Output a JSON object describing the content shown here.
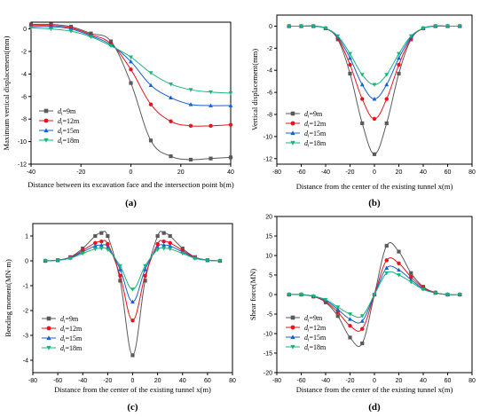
{
  "series_colors": [
    "#5a5a5a",
    "#e8131b",
    "#1560d4",
    "#18b57a"
  ],
  "chart_data": [
    {
      "type": "line",
      "caption": "(a)",
      "xlabel": "Distance between its excavation face and the intersection point b(m)",
      "ylabel": "Maximum vertical displacement(mm)",
      "xlim": [
        -40,
        40
      ],
      "ylim": [
        -12,
        0.6
      ],
      "xticks": [
        -40,
        -20,
        0,
        20,
        40
      ],
      "yticks": [
        0,
        -2,
        -4,
        -6,
        -8,
        -10,
        -12
      ],
      "legend": "left",
      "series": [
        {
          "name": "9m",
          "marker": "square",
          "x": [
            -40,
            -32,
            -24,
            -16,
            -8,
            0,
            8,
            16,
            24,
            32,
            40
          ],
          "y": [
            0.4,
            0.4,
            0.2,
            -0.4,
            -1.1,
            -4.8,
            -9.9,
            -11.3,
            -11.6,
            -11.5,
            -11.4
          ]
        },
        {
          "name": "12m",
          "marker": "circle",
          "x": [
            -40,
            -32,
            -24,
            -16,
            -8,
            0,
            8,
            16,
            24,
            32,
            40
          ],
          "y": [
            0.3,
            0.3,
            0.1,
            -0.5,
            -1.3,
            -3.6,
            -6.7,
            -8.2,
            -8.6,
            -8.6,
            -8.5
          ]
        },
        {
          "name": "15m",
          "marker": "triangle-up",
          "x": [
            -40,
            -32,
            -24,
            -16,
            -8,
            0,
            8,
            16,
            24,
            32,
            40
          ],
          "y": [
            0.2,
            0.2,
            0.0,
            -0.6,
            -1.4,
            -2.9,
            -5.0,
            -6.1,
            -6.7,
            -6.8,
            -6.8
          ]
        },
        {
          "name": "18m",
          "marker": "triangle-down",
          "x": [
            -40,
            -32,
            -24,
            -16,
            -8,
            0,
            8,
            16,
            24,
            32,
            40
          ],
          "y": [
            0.1,
            0.0,
            -0.2,
            -0.7,
            -1.5,
            -2.5,
            -3.9,
            -4.9,
            -5.4,
            -5.6,
            -5.7
          ]
        }
      ]
    },
    {
      "type": "line",
      "caption": "(b)",
      "xlabel": "Distance from the center of the existing tunnel x(m)",
      "ylabel": "Vertical displacement(mm)",
      "xlim": [
        -80,
        80
      ],
      "ylim": [
        -12.5,
        1
      ],
      "xticks": [
        -80,
        -60,
        -40,
        -20,
        0,
        20,
        40,
        60,
        80
      ],
      "yticks": [
        0,
        -2,
        -4,
        -6,
        -8,
        -10,
        -12
      ],
      "legend": "left",
      "series": [
        {
          "name": "9m",
          "marker": "square",
          "x": [
            -70,
            -60,
            -50,
            -40,
            -30,
            -20,
            -10,
            0,
            10,
            20,
            30,
            40,
            50,
            60,
            70
          ],
          "y": [
            0,
            0,
            0,
            -0.2,
            -1.2,
            -4.3,
            -8.8,
            -11.6,
            -8.8,
            -4.3,
            -1.2,
            -0.2,
            0,
            0,
            0
          ]
        },
        {
          "name": "12m",
          "marker": "circle",
          "x": [
            -70,
            -60,
            -50,
            -40,
            -30,
            -20,
            -10,
            0,
            10,
            20,
            30,
            40,
            50,
            60,
            70
          ],
          "y": [
            0,
            0,
            0,
            -0.2,
            -1.1,
            -3.5,
            -6.6,
            -8.4,
            -6.6,
            -3.5,
            -1.1,
            -0.2,
            0,
            0,
            0
          ]
        },
        {
          "name": "15m",
          "marker": "triangle-up",
          "x": [
            -70,
            -60,
            -50,
            -40,
            -30,
            -20,
            -10,
            0,
            10,
            20,
            30,
            40,
            50,
            60,
            70
          ],
          "y": [
            0,
            0,
            0,
            -0.2,
            -1.0,
            -2.9,
            -5.3,
            -6.6,
            -5.3,
            -2.9,
            -1.0,
            -0.2,
            0,
            0,
            0
          ]
        },
        {
          "name": "18m",
          "marker": "triangle-down",
          "x": [
            -70,
            -60,
            -50,
            -40,
            -30,
            -20,
            -10,
            0,
            10,
            20,
            30,
            40,
            50,
            60,
            70
          ],
          "y": [
            0,
            0,
            0,
            -0.2,
            -0.9,
            -2.5,
            -4.4,
            -5.3,
            -4.4,
            -2.5,
            -0.9,
            -0.2,
            0,
            0,
            0
          ]
        }
      ]
    },
    {
      "type": "line",
      "caption": "(c)",
      "xlabel": "Distance from the center of the existing tunnel x(m)",
      "ylabel": "Bending moment(MN·m)",
      "xlim": [
        -80,
        80
      ],
      "ylim": [
        -4.5,
        1.5
      ],
      "xticks": [
        -80,
        -60,
        -40,
        -20,
        0,
        20,
        40,
        60,
        80
      ],
      "yticks": [
        1,
        0,
        -1,
        -2,
        -3,
        -4
      ],
      "legend": "left",
      "series": [
        {
          "name": "9m",
          "marker": "square",
          "x": [
            -70,
            -60,
            -50,
            -40,
            -30,
            -25,
            -20,
            -10,
            0,
            10,
            20,
            25,
            30,
            40,
            50,
            60,
            70
          ],
          "y": [
            0,
            0.03,
            0.15,
            0.5,
            1.0,
            1.12,
            1.0,
            -0.8,
            -3.8,
            -0.8,
            1.0,
            1.12,
            1.0,
            0.5,
            0.15,
            0.03,
            0
          ]
        },
        {
          "name": "12m",
          "marker": "circle",
          "x": [
            -70,
            -60,
            -50,
            -40,
            -30,
            -25,
            -20,
            -10,
            0,
            10,
            20,
            25,
            30,
            40,
            50,
            60,
            70
          ],
          "y": [
            0,
            0.03,
            0.13,
            0.42,
            0.72,
            0.78,
            0.68,
            -0.6,
            -2.4,
            -0.6,
            0.68,
            0.78,
            0.72,
            0.42,
            0.13,
            0.03,
            0
          ]
        },
        {
          "name": "15m",
          "marker": "triangle-up",
          "x": [
            -70,
            -60,
            -50,
            -40,
            -30,
            -25,
            -20,
            -10,
            0,
            10,
            20,
            25,
            30,
            40,
            50,
            60,
            70
          ],
          "y": [
            0,
            0.02,
            0.12,
            0.36,
            0.6,
            0.63,
            0.55,
            -0.35,
            -1.65,
            -0.35,
            0.55,
            0.63,
            0.6,
            0.36,
            0.12,
            0.02,
            0
          ]
        },
        {
          "name": "18m",
          "marker": "triangle-down",
          "x": [
            -70,
            -60,
            -50,
            -40,
            -30,
            -25,
            -20,
            -10,
            0,
            10,
            20,
            25,
            30,
            40,
            50,
            60,
            70
          ],
          "y": [
            0,
            0.02,
            0.1,
            0.3,
            0.48,
            0.5,
            0.45,
            -0.2,
            -1.15,
            -0.2,
            0.45,
            0.5,
            0.48,
            0.3,
            0.1,
            0.02,
            0
          ]
        }
      ]
    },
    {
      "type": "line",
      "caption": "(d)",
      "xlabel": "Distance from the center of the existing tunnel x(m)",
      "ylabel": "Shear force(MN)",
      "xlim": [
        -80,
        80
      ],
      "ylim": [
        -20,
        20
      ],
      "xticks": [
        -80,
        -60,
        -40,
        -20,
        0,
        20,
        40,
        60,
        80
      ],
      "yticks": [
        20,
        15,
        10,
        5,
        0,
        -5,
        -10,
        -15,
        -20
      ],
      "legend": "left",
      "series": [
        {
          "name": "9m",
          "marker": "square",
          "x": [
            -70,
            -60,
            -50,
            -40,
            -30,
            -20,
            -10,
            0,
            10,
            20,
            30,
            40,
            50,
            60,
            70
          ],
          "y": [
            0,
            0,
            -0.5,
            -2,
            -5.5,
            -11,
            -12.5,
            0,
            12.5,
            11,
            5.5,
            2,
            0.5,
            0,
            0
          ]
        },
        {
          "name": "12m",
          "marker": "circle",
          "x": [
            -70,
            -60,
            -50,
            -40,
            -30,
            -20,
            -10,
            0,
            10,
            20,
            30,
            40,
            50,
            60,
            70
          ],
          "y": [
            0,
            0,
            -0.5,
            -1.8,
            -4.5,
            -8,
            -8.8,
            0,
            8.8,
            8,
            4.5,
            1.8,
            0.5,
            0,
            0
          ]
        },
        {
          "name": "15m",
          "marker": "triangle-up",
          "x": [
            -70,
            -60,
            -50,
            -40,
            -30,
            -20,
            -10,
            0,
            10,
            20,
            30,
            40,
            50,
            60,
            70
          ],
          "y": [
            0,
            0,
            -0.4,
            -1.5,
            -3.8,
            -6.3,
            -6.8,
            0,
            6.8,
            6.3,
            3.8,
            1.5,
            0.4,
            0,
            0
          ]
        },
        {
          "name": "18m",
          "marker": "triangle-down",
          "x": [
            -70,
            -60,
            -50,
            -40,
            -30,
            -20,
            -10,
            0,
            10,
            20,
            30,
            40,
            50,
            60,
            70
          ],
          "y": [
            0,
            0,
            -0.4,
            -1.3,
            -3.2,
            -5,
            -5.5,
            0,
            5.5,
            5,
            3.2,
            1.3,
            0.4,
            0,
            0
          ]
        }
      ]
    }
  ]
}
